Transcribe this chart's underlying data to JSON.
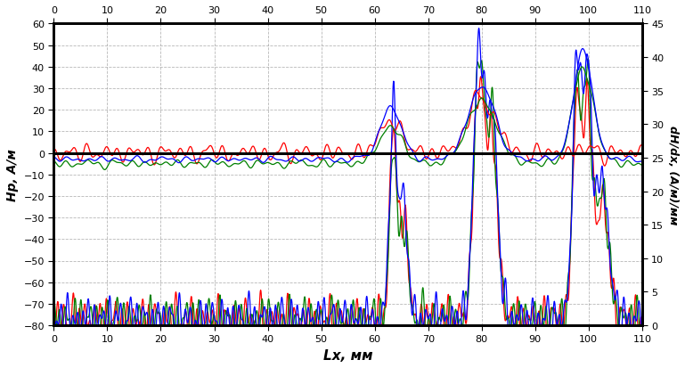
{
  "title": "",
  "xlabel": "Lx, мм",
  "ylabel_left": "Hp, A/м",
  "ylabel_right": "dH/dx, (A/м)/мм",
  "xlim": [
    0,
    110
  ],
  "ylim_left": [
    -80,
    60
  ],
  "ylim_right": [
    0,
    45
  ],
  "xticks": [
    0,
    10,
    20,
    30,
    40,
    50,
    60,
    70,
    80,
    90,
    100,
    110
  ],
  "yticks_left": [
    -80,
    -70,
    -60,
    -50,
    -40,
    -30,
    -20,
    -10,
    0,
    10,
    20,
    30,
    40,
    50,
    60
  ],
  "yticks_right": [
    0,
    5,
    10,
    15,
    20,
    25,
    30,
    35,
    40,
    45
  ],
  "colors": [
    "#ff0000",
    "#008000",
    "#0000ff"
  ],
  "background_color": "#ffffff",
  "grid_color": "#999999",
  "figsize": [
    7.69,
    4.14
  ],
  "dpi": 100
}
